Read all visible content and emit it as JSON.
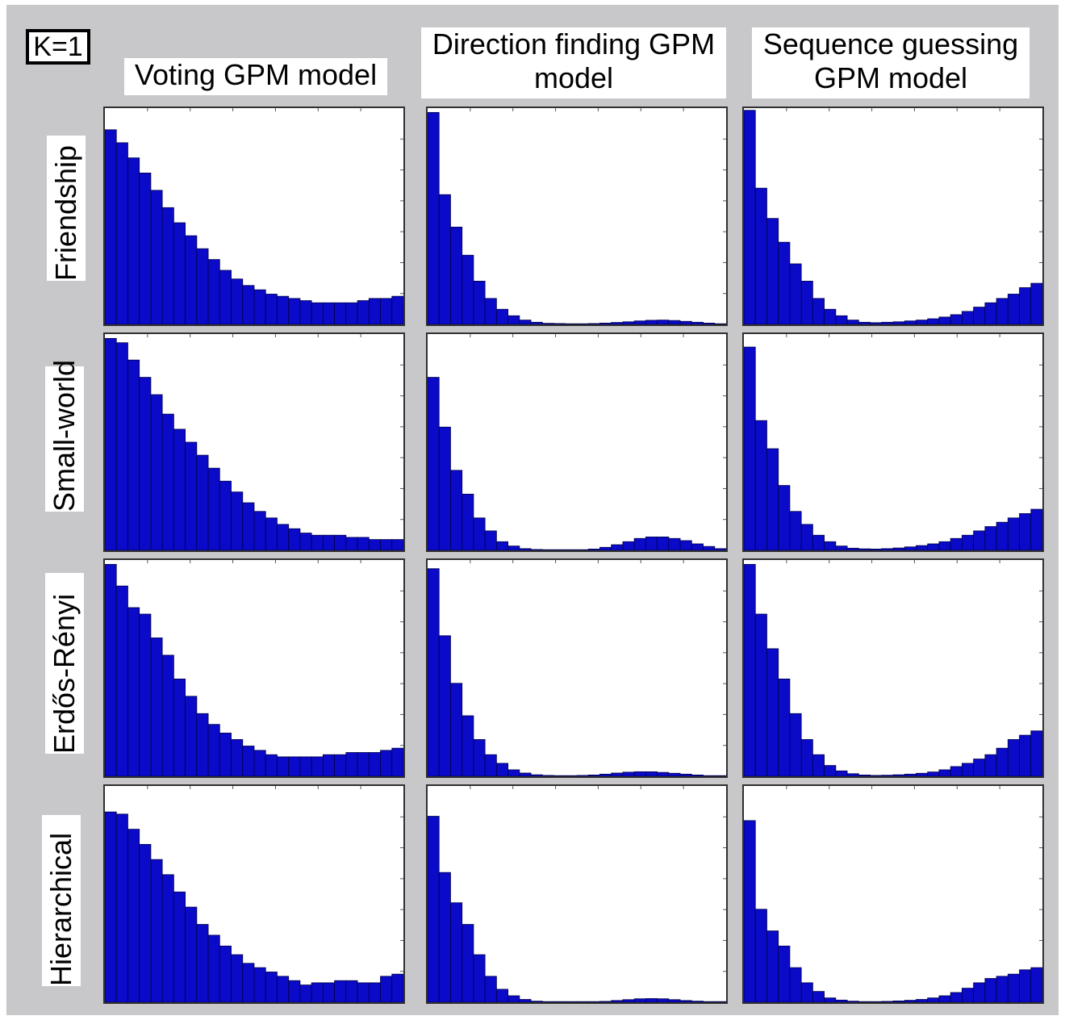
{
  "figure": {
    "k_label": "K=1",
    "columns": [
      "Voting GPM model",
      "Direction finding GPM model",
      "Sequence guessing GPM model"
    ],
    "rows": [
      "Friendship",
      "Small-world",
      "Erdős-Rényi",
      "Hierarchical"
    ],
    "bar_color": "#0a0ac8",
    "bar_edge_color": "#00004a"
  },
  "chart_data": [
    {
      "type": "bar",
      "row": "Friendship",
      "column": "Voting GPM model",
      "bins": 26,
      "values": [
        0.9,
        0.84,
        0.77,
        0.7,
        0.62,
        0.54,
        0.47,
        0.41,
        0.35,
        0.3,
        0.25,
        0.21,
        0.18,
        0.16,
        0.14,
        0.13,
        0.12,
        0.11,
        0.1,
        0.1,
        0.1,
        0.1,
        0.11,
        0.12,
        0.12,
        0.13
      ]
    },
    {
      "type": "bar",
      "row": "Friendship",
      "column": "Direction finding GPM model",
      "bins": 26,
      "values": [
        0.98,
        0.6,
        0.45,
        0.32,
        0.2,
        0.12,
        0.07,
        0.04,
        0.02,
        0.01,
        0.005,
        0.004,
        0.003,
        0.003,
        0.004,
        0.006,
        0.009,
        0.012,
        0.016,
        0.019,
        0.02,
        0.018,
        0.014,
        0.01,
        0.006,
        0.003
      ]
    },
    {
      "type": "bar",
      "row": "Friendship",
      "column": "Sequence guessing GPM model",
      "bins": 26,
      "values": [
        0.99,
        0.63,
        0.49,
        0.38,
        0.28,
        0.2,
        0.12,
        0.07,
        0.04,
        0.02,
        0.01,
        0.008,
        0.01,
        0.012,
        0.016,
        0.02,
        0.026,
        0.034,
        0.045,
        0.06,
        0.08,
        0.1,
        0.12,
        0.14,
        0.17,
        0.19
      ]
    },
    {
      "type": "bar",
      "row": "Small-world",
      "column": "Voting GPM model",
      "bins": 26,
      "values": [
        0.98,
        0.96,
        0.88,
        0.8,
        0.72,
        0.63,
        0.56,
        0.5,
        0.44,
        0.38,
        0.32,
        0.27,
        0.22,
        0.18,
        0.15,
        0.12,
        0.1,
        0.08,
        0.07,
        0.07,
        0.07,
        0.06,
        0.06,
        0.05,
        0.05,
        0.05
      ]
    },
    {
      "type": "bar",
      "row": "Small-world",
      "column": "Direction finding GPM model",
      "bins": 26,
      "values": [
        0.8,
        0.57,
        0.37,
        0.26,
        0.15,
        0.09,
        0.04,
        0.02,
        0.008,
        0.004,
        0.002,
        0.001,
        0.001,
        0.002,
        0.006,
        0.014,
        0.026,
        0.04,
        0.055,
        0.062,
        0.062,
        0.055,
        0.045,
        0.03,
        0.018,
        0.008
      ]
    },
    {
      "type": "bar",
      "row": "Small-world",
      "column": "Sequence guessing GPM model",
      "bins": 26,
      "values": [
        0.94,
        0.6,
        0.47,
        0.3,
        0.18,
        0.12,
        0.07,
        0.04,
        0.02,
        0.01,
        0.007,
        0.006,
        0.008,
        0.011,
        0.016,
        0.022,
        0.03,
        0.04,
        0.055,
        0.07,
        0.09,
        0.11,
        0.13,
        0.15,
        0.17,
        0.19
      ]
    },
    {
      "type": "bar",
      "row": "Erdős-Rényi",
      "column": "Voting GPM model",
      "bins": 26,
      "values": [
        0.98,
        0.88,
        0.78,
        0.75,
        0.64,
        0.56,
        0.45,
        0.37,
        0.29,
        0.24,
        0.2,
        0.17,
        0.14,
        0.12,
        0.1,
        0.09,
        0.09,
        0.09,
        0.09,
        0.1,
        0.1,
        0.11,
        0.11,
        0.11,
        0.12,
        0.13
      ]
    },
    {
      "type": "bar",
      "row": "Erdős-Rényi",
      "column": "Direction finding GPM model",
      "bins": 26,
      "values": [
        0.96,
        0.65,
        0.43,
        0.28,
        0.17,
        0.1,
        0.06,
        0.03,
        0.015,
        0.007,
        0.004,
        0.003,
        0.003,
        0.004,
        0.006,
        0.01,
        0.015,
        0.019,
        0.021,
        0.021,
        0.018,
        0.014,
        0.01,
        0.006,
        0.003,
        0.002
      ]
    },
    {
      "type": "bar",
      "row": "Erdős-Rényi",
      "column": "Sequence guessing GPM model",
      "bins": 26,
      "values": [
        0.98,
        0.75,
        0.59,
        0.45,
        0.29,
        0.17,
        0.1,
        0.05,
        0.025,
        0.012,
        0.006,
        0.004,
        0.005,
        0.007,
        0.01,
        0.014,
        0.02,
        0.03,
        0.045,
        0.06,
        0.08,
        0.1,
        0.13,
        0.17,
        0.19,
        0.21
      ]
    },
    {
      "type": "bar",
      "row": "Hierarchical",
      "column": "Voting GPM model",
      "bins": 26,
      "values": [
        0.88,
        0.87,
        0.8,
        0.73,
        0.66,
        0.59,
        0.51,
        0.44,
        0.36,
        0.31,
        0.26,
        0.22,
        0.18,
        0.16,
        0.14,
        0.12,
        0.1,
        0.08,
        0.09,
        0.09,
        0.1,
        0.1,
        0.09,
        0.09,
        0.12,
        0.13
      ]
    },
    {
      "type": "bar",
      "row": "Hierarchical",
      "column": "Direction finding GPM model",
      "bins": 26,
      "values": [
        0.86,
        0.6,
        0.46,
        0.36,
        0.22,
        0.12,
        0.06,
        0.03,
        0.013,
        0.005,
        0.002,
        0.001,
        0.001,
        0.001,
        0.002,
        0.004,
        0.008,
        0.012,
        0.016,
        0.017,
        0.016,
        0.012,
        0.008,
        0.005,
        0.003,
        0.002
      ]
    },
    {
      "type": "bar",
      "row": "Hierarchical",
      "column": "Sequence guessing GPM model",
      "bins": 26,
      "values": [
        0.84,
        0.43,
        0.33,
        0.26,
        0.16,
        0.09,
        0.05,
        0.02,
        0.01,
        0.005,
        0.003,
        0.003,
        0.004,
        0.006,
        0.009,
        0.013,
        0.02,
        0.03,
        0.045,
        0.065,
        0.09,
        0.11,
        0.12,
        0.13,
        0.15,
        0.16
      ]
    }
  ]
}
